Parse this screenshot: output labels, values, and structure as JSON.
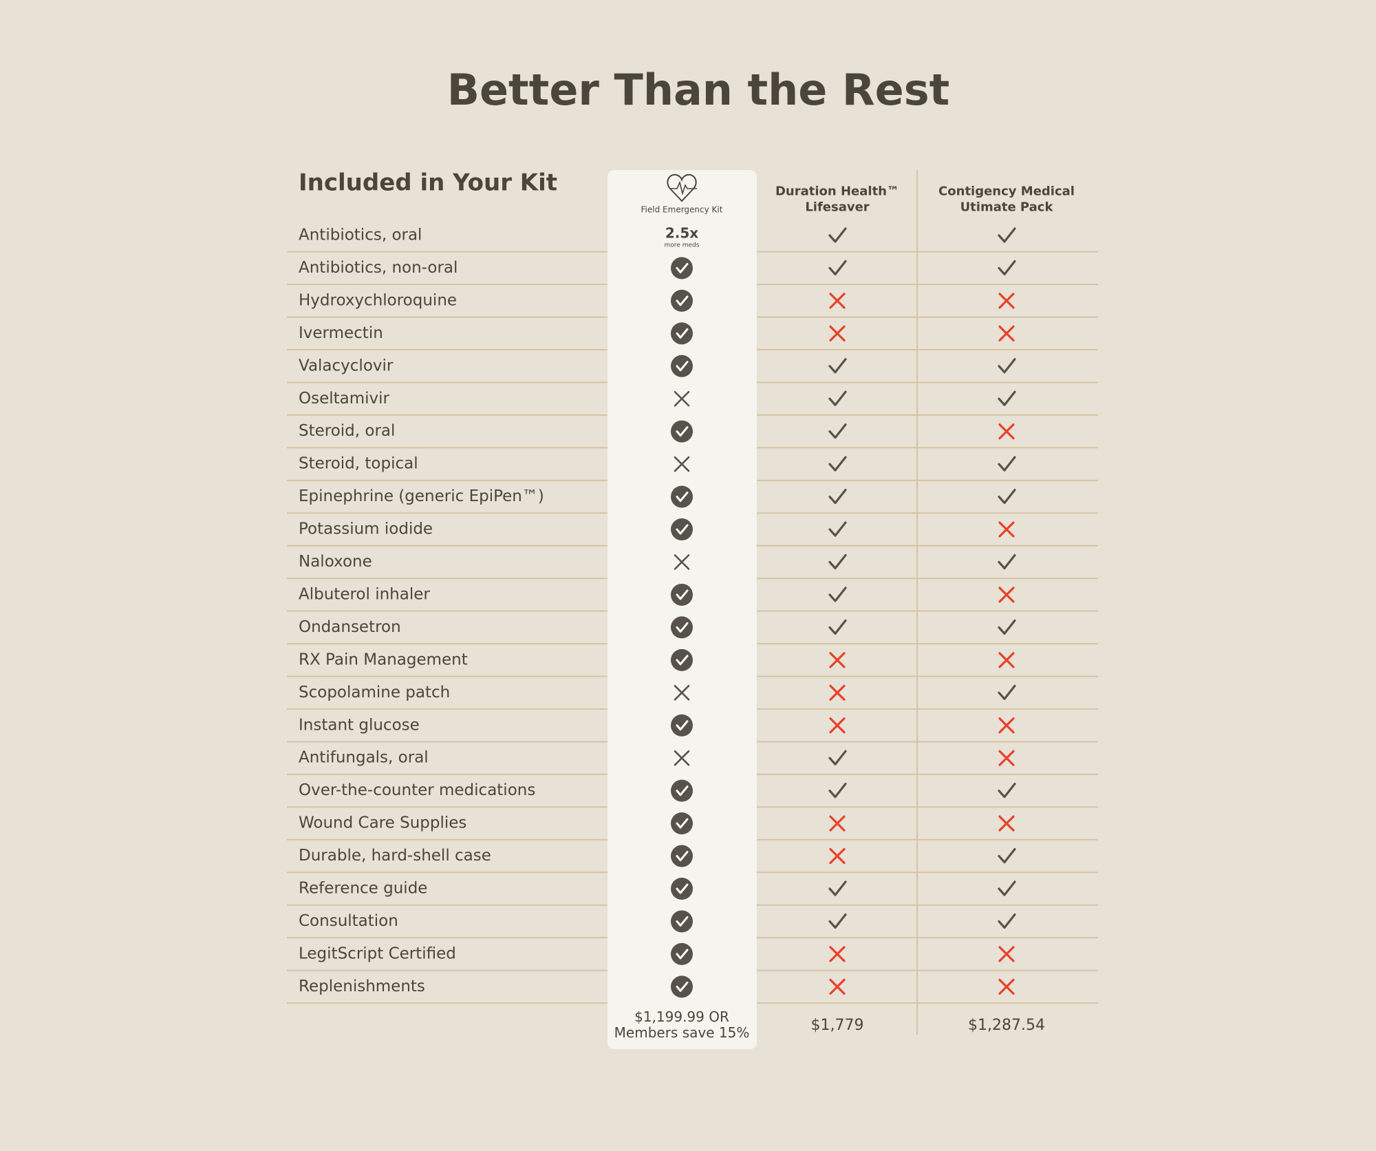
{
  "title": "Better Than the Rest",
  "table": {
    "header": "Included in Your Kit",
    "columns": [
      {
        "name": [
          "Field Emergency Kit"
        ],
        "price": [
          "$1,199.99 OR",
          "Members save 15%"
        ]
      },
      {
        "name": [
          "Duration Health™",
          "Lifesaver"
        ],
        "price": [
          "$1,779"
        ]
      },
      {
        "name": [
          "Contigency Medical",
          "Utimate Pack"
        ],
        "price": [
          "$1,287.54"
        ]
      }
    ],
    "badge": [
      "2.5x",
      "more meds"
    ],
    "rows": [
      {
        "item": "Antibiotics, oral",
        "values": [
          null,
          true,
          true
        ]
      },
      {
        "item": "Antibiotics, non-oral",
        "values": [
          true,
          true,
          true
        ]
      },
      {
        "item": "Hydroxychloroquine",
        "values": [
          true,
          false,
          false
        ]
      },
      {
        "item": "Ivermectin",
        "values": [
          true,
          false,
          false
        ]
      },
      {
        "item": "Valacyclovir",
        "values": [
          true,
          true,
          true
        ]
      },
      {
        "item": "Oseltamivir",
        "values": [
          false,
          true,
          true
        ]
      },
      {
        "item": "Steroid, oral",
        "values": [
          true,
          true,
          false
        ]
      },
      {
        "item": "Steroid, topical",
        "values": [
          false,
          true,
          true
        ]
      },
      {
        "item": "Epinephrine (generic EpiPen™)",
        "values": [
          true,
          true,
          true
        ]
      },
      {
        "item": "Potassium iodide",
        "values": [
          true,
          true,
          false
        ]
      },
      {
        "item": "Naloxone",
        "values": [
          false,
          true,
          true
        ]
      },
      {
        "item": "Albuterol inhaler",
        "values": [
          true,
          true,
          false
        ]
      },
      {
        "item": "Ondansetron",
        "values": [
          true,
          true,
          true
        ]
      },
      {
        "item": "RX Pain Management",
        "values": [
          true,
          false,
          false
        ]
      },
      {
        "item": "Scopolamine patch",
        "values": [
          false,
          false,
          true
        ]
      },
      {
        "item": "Instant glucose",
        "values": [
          true,
          false,
          false
        ]
      },
      {
        "item": "Antifungals, oral",
        "values": [
          false,
          true,
          false
        ]
      },
      {
        "item": "Over-the-counter medications",
        "values": [
          true,
          true,
          true
        ]
      },
      {
        "item": "Wound Care Supplies",
        "values": [
          true,
          false,
          false
        ]
      },
      {
        "item": "Durable, hard-shell case",
        "values": [
          true,
          false,
          true
        ]
      },
      {
        "item": "Reference guide",
        "values": [
          true,
          true,
          true
        ]
      },
      {
        "item": "Consultation",
        "values": [
          true,
          true,
          true
        ]
      },
      {
        "item": "LegitScript Certified",
        "values": [
          true,
          false,
          false
        ]
      },
      {
        "item": "Replenishments",
        "values": [
          true,
          false,
          false
        ]
      }
    ]
  }
}
